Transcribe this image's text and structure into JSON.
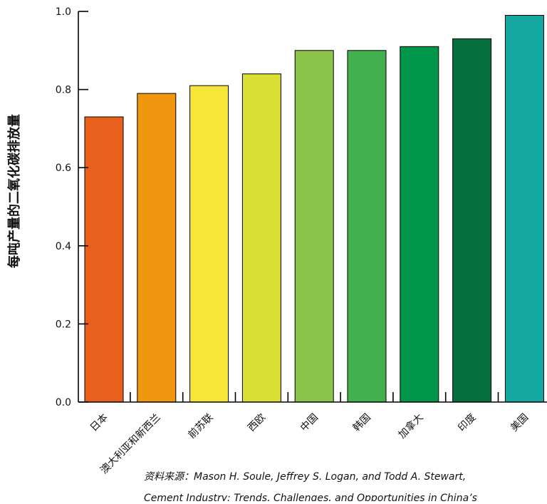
{
  "chart_data": {
    "type": "bar",
    "title": "",
    "xlabel": "",
    "ylabel": "每吨产量的二氧化碳排放量",
    "ylim": [
      0,
      1.0
    ],
    "yticks": [
      "0.0",
      "0.2",
      "0.4",
      "0.6",
      "0.8",
      "1.0"
    ],
    "grid": false,
    "categories": [
      "日本",
      "澳大利亚和新西兰",
      "前苏联",
      "西欧",
      "中国",
      "韩国",
      "加拿大",
      "印度",
      "美国"
    ],
    "values": [
      0.73,
      0.79,
      0.81,
      0.84,
      0.9,
      0.9,
      0.91,
      0.93,
      0.99
    ],
    "colors": [
      "#e8601c",
      "#f0960f",
      "#f5e638",
      "#d9df33",
      "#8cc34a",
      "#42b04f",
      "#00964a",
      "#076e3e",
      "#14a8a1"
    ]
  },
  "source": {
    "label": "资料来源：",
    "line1": "Mason H. Soule, Jeffrey S. Logan, and Todd A. Stewart,",
    "line2": "Cement Industry: Trends, Challenges, and Opportunities in China’s"
  }
}
